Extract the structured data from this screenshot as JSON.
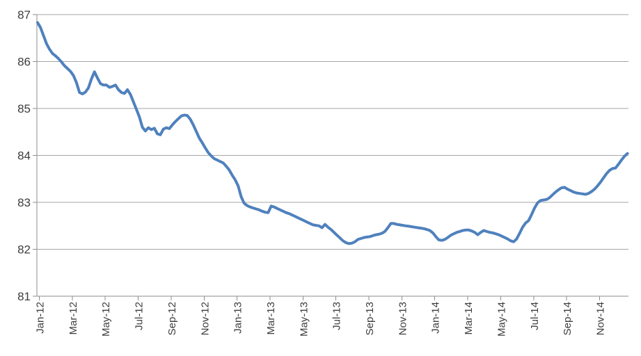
{
  "chart_data": {
    "type": "line",
    "title": "",
    "xlabel": "",
    "ylabel": "",
    "x_tick_labels": [
      "Jan-12",
      "Mar-12",
      "May-12",
      "Jul-12",
      "Sep-12",
      "Nov-12",
      "Jan-13",
      "Mar-13",
      "May-13",
      "Jul-13",
      "Sep-13",
      "Nov-13",
      "Jan-14",
      "Mar-14",
      "May-14",
      "Jul-14",
      "Sep-14",
      "Nov-14"
    ],
    "y_tick_labels": [
      "81",
      "82",
      "83",
      "84",
      "85",
      "86",
      "87"
    ],
    "ylim": [
      81,
      87
    ],
    "grid": "horizontal",
    "legend_position": "none",
    "series": [
      {
        "name": "series-1",
        "values": [
          86.83,
          86.72,
          86.55,
          86.38,
          86.26,
          86.17,
          86.12,
          86.06,
          85.99,
          85.91,
          85.85,
          85.79,
          85.7,
          85.55,
          85.34,
          85.31,
          85.35,
          85.44,
          85.63,
          85.78,
          85.65,
          85.53,
          85.5,
          85.5,
          85.45,
          85.47,
          85.5,
          85.4,
          85.34,
          85.32,
          85.4,
          85.3,
          85.14,
          84.98,
          84.82,
          84.6,
          84.52,
          84.59,
          84.55,
          84.58,
          84.46,
          84.44,
          84.56,
          84.59,
          84.57,
          84.65,
          84.72,
          84.78,
          84.84,
          84.86,
          84.85,
          84.77,
          84.65,
          84.51,
          84.37,
          84.27,
          84.16,
          84.06,
          83.99,
          83.93,
          83.9,
          83.87,
          83.84,
          83.77,
          83.69,
          83.58,
          83.48,
          83.35,
          83.12,
          82.98,
          82.93,
          82.9,
          82.88,
          82.86,
          82.84,
          82.81,
          82.79,
          82.78,
          82.92,
          82.9,
          82.87,
          82.84,
          82.81,
          82.78,
          82.76,
          82.73,
          82.7,
          82.67,
          82.64,
          82.61,
          82.58,
          82.55,
          82.52,
          82.51,
          82.5,
          82.46,
          82.53,
          82.47,
          82.42,
          82.36,
          82.3,
          82.24,
          82.18,
          82.14,
          82.12,
          82.13,
          82.16,
          82.21,
          82.23,
          82.25,
          82.26,
          82.27,
          82.29,
          82.31,
          82.32,
          82.34,
          82.38,
          82.46,
          82.55,
          82.55,
          82.53,
          82.52,
          82.51,
          82.5,
          82.49,
          82.48,
          82.47,
          82.46,
          82.45,
          82.44,
          82.42,
          82.4,
          82.35,
          82.27,
          82.2,
          82.19,
          82.21,
          82.25,
          82.3,
          82.33,
          82.36,
          82.38,
          82.4,
          82.41,
          82.41,
          82.39,
          82.36,
          82.31,
          82.36,
          82.4,
          82.38,
          82.36,
          82.35,
          82.33,
          82.31,
          82.28,
          82.25,
          82.22,
          82.18,
          82.16,
          82.22,
          82.34,
          82.47,
          82.56,
          82.61,
          82.74,
          82.88,
          82.99,
          83.04,
          83.05,
          83.06,
          83.1,
          83.16,
          83.22,
          83.27,
          83.31,
          83.32,
          83.28,
          83.25,
          83.22,
          83.2,
          83.19,
          83.18,
          83.17,
          83.19,
          83.23,
          83.28,
          83.35,
          83.43,
          83.52,
          83.61,
          83.68,
          83.72,
          83.73,
          83.81,
          83.9,
          83.98,
          84.04
        ]
      }
    ]
  },
  "style": {
    "line_color": "#4F81BD",
    "grid_color": "#A6A6A6",
    "axis_color": "#8C8C8C",
    "label_color": "#3D3D3D",
    "background": "#FFFFFF"
  }
}
